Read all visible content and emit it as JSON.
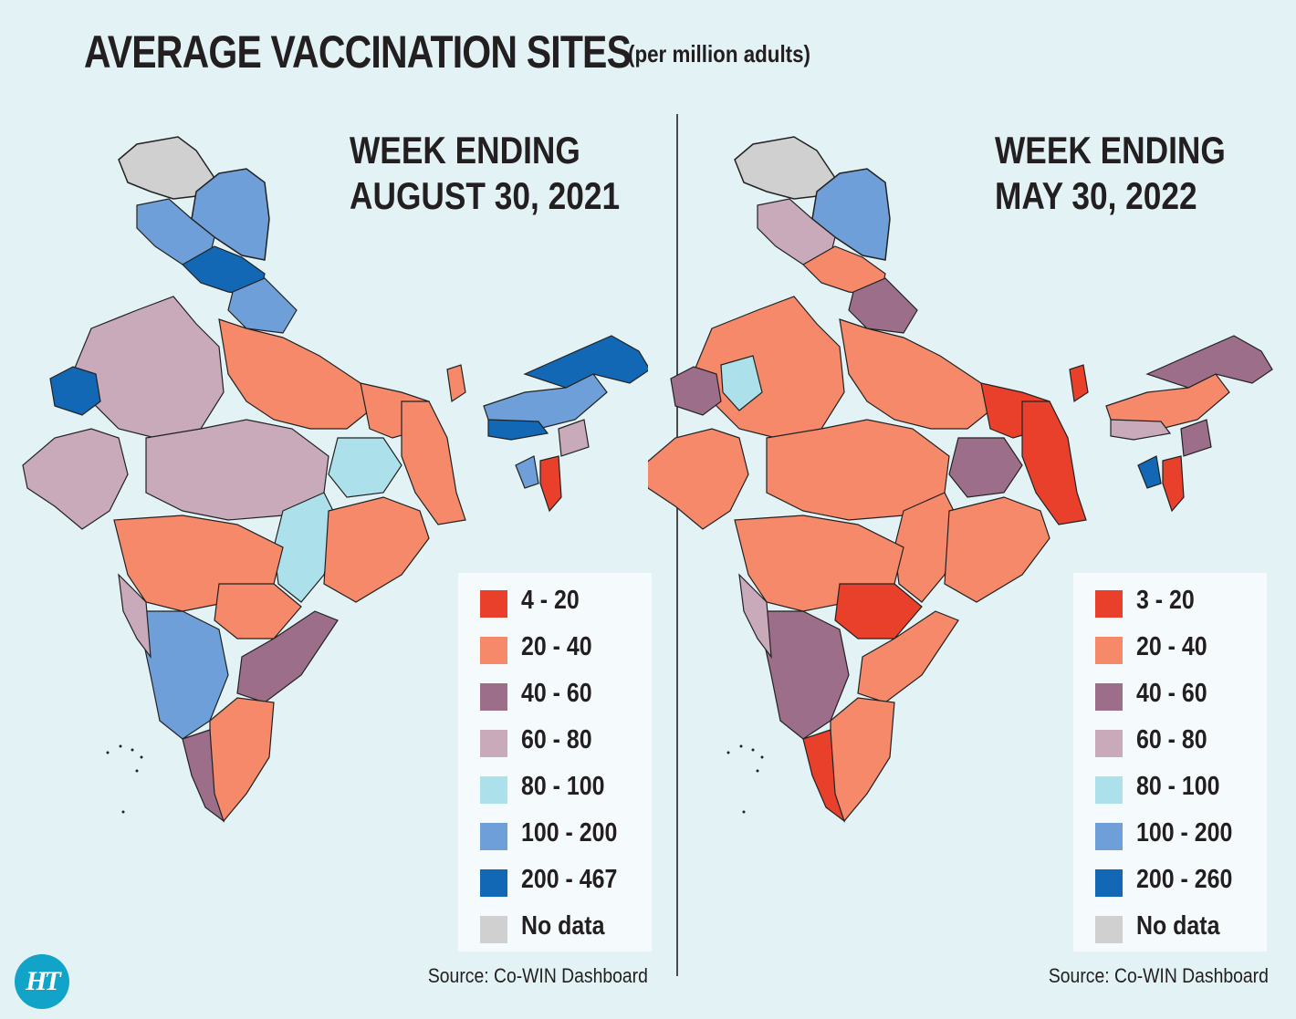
{
  "title": "AVERAGE VACCINATION SITES",
  "subtitle": "(per million adults)",
  "colors": {
    "c1": "#e8402a",
    "c2": "#f5896a",
    "c3": "#9c6e8a",
    "c4": "#c9aabb",
    "c5": "#ace0ea",
    "c6": "#6e9fd8",
    "c7": "#1268b5",
    "nodata": "#d0d0d0",
    "background": "#e2f2f5"
  },
  "panels": [
    {
      "heading_line1": "WEEK ENDING",
      "heading_line2": "AUGUST 30, 2021",
      "source": "Source: Co-WIN Dashboard",
      "legend": [
        {
          "label": "4 - 20",
          "color": "#e8402a"
        },
        {
          "label": "20 - 40",
          "color": "#f5896a"
        },
        {
          "label": "40 - 60",
          "color": "#9c6e8a"
        },
        {
          "label": "60 - 80",
          "color": "#c9aabb"
        },
        {
          "label": "80 - 100",
          "color": "#ace0ea"
        },
        {
          "label": "100 - 200",
          "color": "#6e9fd8"
        },
        {
          "label": "200 - 467",
          "color": "#1268b5"
        },
        {
          "label": "No data",
          "color": "#d0d0d0"
        }
      ]
    },
    {
      "heading_line1": "WEEK ENDING",
      "heading_line2": "MAY 30, 2022",
      "source": "Source: Co-WIN Dashboard",
      "legend": [
        {
          "label": "3 - 20",
          "color": "#e8402a"
        },
        {
          "label": "20 - 40",
          "color": "#f5896a"
        },
        {
          "label": "40 - 60",
          "color": "#9c6e8a"
        },
        {
          "label": "60 - 80",
          "color": "#c9aabb"
        },
        {
          "label": "80 - 100",
          "color": "#ace0ea"
        },
        {
          "label": "100 - 200",
          "color": "#6e9fd8"
        },
        {
          "label": "200 - 260",
          "color": "#1268b5"
        },
        {
          "label": "No data",
          "color": "#d0d0d0"
        }
      ]
    }
  ],
  "logo": "HT"
}
